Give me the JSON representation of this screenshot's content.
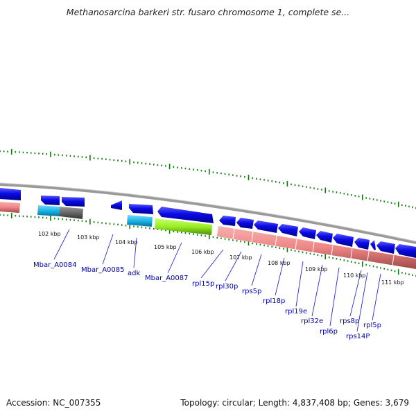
{
  "title": "Methanosarcina barkeri str. fusaro chromosome 1, complete se...",
  "footer": {
    "accession": "Accession: NC_007355",
    "topology": "Topology: circular; Length: 4,837,408 bp; Genes: 3,679"
  },
  "kbp_labels": [
    "102 kbp",
    "103 kbp",
    "104 kbp",
    "105 kbp",
    "106 kbp",
    "107 kbp",
    "108 kbp",
    "109 kbp",
    "110 kbp",
    "111 kbp"
  ],
  "gene_labels": [
    "Mbar_A0084",
    "Mbar_A0085",
    "adk",
    "Mbar_A0087",
    "rpl15p",
    "rpl30p",
    "rps5p",
    "rpl18p",
    "rpl19e",
    "rpl32e",
    "rpl6p",
    "rps8p",
    "rps14P",
    "rpl5p"
  ],
  "colors": {
    "forward_gene": "#0a0ae6",
    "rrna_gene": "#f28a8a",
    "cyan_gene": "#19b6ea",
    "gray_gene": "#666666",
    "green_gene": "#99ee22",
    "backbone": "#8a8a8a",
    "tick": "#0a7a0a",
    "label": "#0000a8"
  }
}
